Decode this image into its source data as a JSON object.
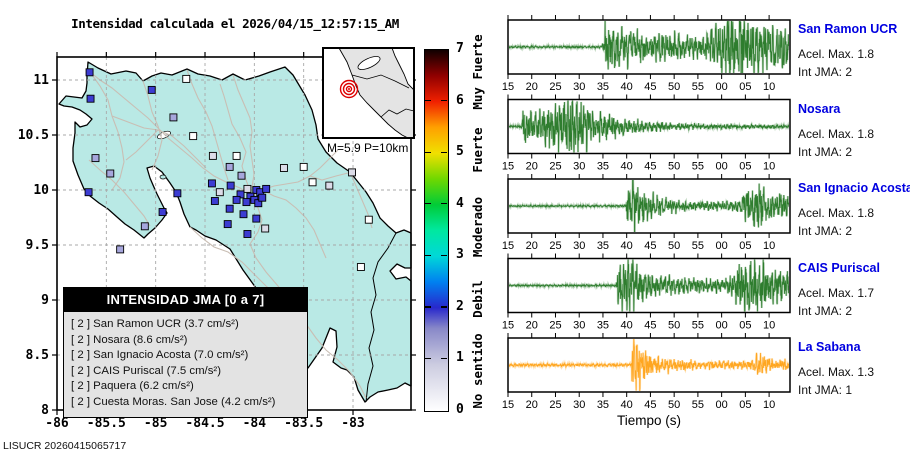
{
  "chart_data": {
    "type": "composite",
    "map": {
      "type": "map-scatter",
      "title": "Intensidad calculada el 2026/04/15_12:57:15_AM",
      "lon_range": [
        -86,
        -82.41
      ],
      "lat_range": [
        8,
        11.21
      ],
      "x_tick_values": [
        -86,
        -85.5,
        -85,
        -84.5,
        -84,
        -83.5,
        -83
      ],
      "x_tick_labels": [
        "-86",
        "-85.5",
        "-85",
        "-84.5",
        "-84",
        "-83.5",
        "-83"
      ],
      "y_tick_values": [
        8,
        8.5,
        9,
        9.5,
        10,
        10.5,
        11
      ],
      "y_tick_labels": [
        "8",
        "8.5",
        "9",
        "9.5",
        "10",
        "10.5",
        "11"
      ],
      "inset": {
        "label": "M=5.9 P=10km",
        "magnitude": 5.9,
        "depth_km": 10
      },
      "legend": {
        "title": "INTENSIDAD JMA [0 a 7]",
        "items": [
          "[ 2 ]  San Ramon UCR (3.7 cm/s²)",
          "[ 2 ]  Nosara (8.6 cm/s²)",
          "[ 2 ]  San Ignacio Acosta (7.0 cm/s²)",
          "[ 2 ]  CAIS Puriscal (7.5 cm/s²)",
          "[ 2 ]  Paquera (6.2 cm/s²)",
          "[ 2 ]  Cuesta Moras. San Jose (4.2 cm/s²)"
        ]
      },
      "stations": [
        {
          "lon": -85.67,
          "lat": 11.07,
          "int": 2
        },
        {
          "lon": -85.04,
          "lat": 10.91,
          "int": 2
        },
        {
          "lon": -85.66,
          "lat": 10.83,
          "int": 2
        },
        {
          "lon": -84.69,
          "lat": 11.01,
          "int": 0
        },
        {
          "lon": -84.82,
          "lat": 10.66,
          "int": 1
        },
        {
          "lon": -84.62,
          "lat": 10.49,
          "int": 0
        },
        {
          "lon": -85.61,
          "lat": 10.29,
          "int": 1
        },
        {
          "lon": -85.46,
          "lat": 10.15,
          "int": 1
        },
        {
          "lon": -85.68,
          "lat": 9.98,
          "int": 2
        },
        {
          "lon": -84.93,
          "lat": 9.8,
          "int": 2
        },
        {
          "lon": -85.11,
          "lat": 9.67,
          "int": 1
        },
        {
          "lon": -85.36,
          "lat": 9.46,
          "int": 1
        },
        {
          "lon": -84.42,
          "lat": 10.31,
          "int": 0.5
        },
        {
          "lon": -84.18,
          "lat": 10.31,
          "int": 0
        },
        {
          "lon": -84.25,
          "lat": 10.21,
          "int": 1
        },
        {
          "lon": -83.7,
          "lat": 10.2,
          "int": 0.5
        },
        {
          "lon": -83.5,
          "lat": 10.21,
          "int": 0
        },
        {
          "lon": -84.13,
          "lat": 10.13,
          "int": 1
        },
        {
          "lon": -84.35,
          "lat": 9.98,
          "int": 0.5
        },
        {
          "lon": -84.43,
          "lat": 10.06,
          "int": 2
        },
        {
          "lon": -84.24,
          "lat": 10.04,
          "int": 2
        },
        {
          "lon": -84.07,
          "lat": 10.01,
          "int": 0.5
        },
        {
          "lon": -83.98,
          "lat": 10.0,
          "int": 2
        },
        {
          "lon": -83.94,
          "lat": 9.98,
          "int": 2
        },
        {
          "lon": -83.88,
          "lat": 10.01,
          "int": 2
        },
        {
          "lon": -84.78,
          "lat": 9.97,
          "int": 2
        },
        {
          "lon": -84.4,
          "lat": 9.9,
          "int": 2
        },
        {
          "lon": -84.25,
          "lat": 9.83,
          "int": 2
        },
        {
          "lon": -84.11,
          "lat": 9.78,
          "int": 2
        },
        {
          "lon": -83.98,
          "lat": 9.74,
          "int": 2
        },
        {
          "lon": -83.89,
          "lat": 9.65,
          "int": 0.5
        },
        {
          "lon": -84.04,
          "lat": 9.94,
          "int": 2
        },
        {
          "lon": -84.0,
          "lat": 9.91,
          "int": 2
        },
        {
          "lon": -83.96,
          "lat": 9.88,
          "int": 2
        },
        {
          "lon": -83.92,
          "lat": 9.93,
          "int": 2
        },
        {
          "lon": -84.08,
          "lat": 9.89,
          "int": 2
        },
        {
          "lon": -84.14,
          "lat": 9.96,
          "int": 2
        },
        {
          "lon": -84.18,
          "lat": 9.91,
          "int": 2
        },
        {
          "lon": -84.27,
          "lat": 9.69,
          "int": 2
        },
        {
          "lon": -84.07,
          "lat": 9.6,
          "int": 2
        },
        {
          "lon": -83.41,
          "lat": 10.07,
          "int": 0
        },
        {
          "lon": -83.24,
          "lat": 10.04,
          "int": 0.5
        },
        {
          "lon": -83.01,
          "lat": 10.16,
          "int": 0.5
        },
        {
          "lon": -82.84,
          "lat": 9.73,
          "int": 0
        },
        {
          "lon": -83.59,
          "lat": 8.96,
          "int": 0.5
        },
        {
          "lon": -82.92,
          "lat": 9.3,
          "int": 0
        }
      ],
      "marker_colors": {
        "2": "#3c3cd2",
        "1": "#a6a6dc",
        "0.5": "#dcdce8",
        "0": "#ffffff"
      },
      "land_color": "#b9e9e5"
    },
    "colorbar": {
      "tick_values": [
        0,
        1,
        2,
        3,
        4,
        5,
        6,
        7
      ],
      "tick_labels": [
        "0",
        "1",
        "2",
        "3",
        "4",
        "5",
        "6",
        "7"
      ],
      "category_labels": [
        {
          "text": "No sentido",
          "at": 0.75
        },
        {
          "text": "Debil",
          "at": 2.15
        },
        {
          "text": "Moderado",
          "at": 3.55
        },
        {
          "text": "Fuerte",
          "at": 5.05
        },
        {
          "text": "Muy Fuerte",
          "at": 6.55
        }
      ],
      "stops": [
        [
          0,
          "#ffffff"
        ],
        [
          0.9,
          "#cccce0"
        ],
        [
          1.6,
          "#8888c8"
        ],
        [
          2,
          "#2828cc"
        ],
        [
          2.5,
          "#0080f0"
        ],
        [
          3,
          "#00d8d8"
        ],
        [
          3.5,
          "#00e8a0"
        ],
        [
          4,
          "#00cc38"
        ],
        [
          4.5,
          "#70d800"
        ],
        [
          5,
          "#f0e000"
        ],
        [
          5.5,
          "#ffa000"
        ],
        [
          6,
          "#f02000"
        ],
        [
          6.5,
          "#900000"
        ],
        [
          7,
          "#100000"
        ]
      ]
    },
    "waveforms": {
      "type": "line",
      "xlabel": "Tiempo (s)",
      "t_range": [
        15,
        74.4
      ],
      "x_tick_values": [
        15,
        20,
        25,
        30,
        35,
        40,
        45,
        50,
        55,
        60,
        65,
        70
      ],
      "x_tick_labels": [
        "15",
        "20",
        "25",
        "30",
        "35",
        "40",
        "45",
        "50",
        "55",
        "00",
        "05",
        "10"
      ],
      "stations": [
        {
          "name": "San Ramon UCR",
          "acel_label": "Acel. Max. 1.8",
          "int_label": "Int JMA: 2",
          "acel_max": 1.8,
          "int_jma": 2,
          "color": "#2e7d2e",
          "envelope": [
            [
              15,
              0.03
            ],
            [
              34.7,
              0.03
            ],
            [
              35.2,
              0.55
            ],
            [
              37.5,
              0.75
            ],
            [
              39,
              0.5
            ],
            [
              43,
              0.42
            ],
            [
              48,
              0.38
            ],
            [
              53,
              0.33
            ],
            [
              56.5,
              0.3
            ],
            [
              58,
              0.55
            ],
            [
              60,
              0.8
            ],
            [
              61.5,
              1.0
            ],
            [
              63,
              0.85
            ],
            [
              64.5,
              0.95
            ],
            [
              66,
              0.75
            ],
            [
              68,
              0.8
            ],
            [
              70,
              0.65
            ],
            [
              72,
              0.7
            ],
            [
              74.4,
              0.6
            ]
          ]
        },
        {
          "name": "Nosara",
          "acel_label": "Acel. Max. 1.8",
          "int_label": "Int JMA: 2",
          "acel_max": 1.8,
          "int_jma": 2,
          "color": "#2e7d2e",
          "envelope": [
            [
              15,
              0.03
            ],
            [
              17.8,
              0.04
            ],
            [
              18.2,
              0.5
            ],
            [
              19,
              0.55
            ],
            [
              21,
              0.35
            ],
            [
              23,
              0.45
            ],
            [
              25,
              0.7
            ],
            [
              27,
              0.8
            ],
            [
              28.5,
              1.0
            ],
            [
              30,
              0.75
            ],
            [
              31.5,
              0.6
            ],
            [
              33,
              0.45
            ],
            [
              35,
              0.4
            ],
            [
              37,
              0.3
            ],
            [
              40,
              0.22
            ],
            [
              44,
              0.15
            ],
            [
              48,
              0.12
            ],
            [
              54,
              0.09
            ],
            [
              60,
              0.07
            ],
            [
              66,
              0.06
            ],
            [
              74.4,
              0.05
            ]
          ]
        },
        {
          "name": "San Ignacio Acosta",
          "acel_label": "Acel. Max. 1.8",
          "int_label": "Int JMA: 2",
          "acel_max": 1.8,
          "int_jma": 2,
          "color": "#2e7d2e",
          "envelope": [
            [
              15,
              0.025
            ],
            [
              39.8,
              0.03
            ],
            [
              40.3,
              0.9
            ],
            [
              41,
              1.0
            ],
            [
              42.5,
              0.6
            ],
            [
              44,
              0.4
            ],
            [
              46,
              0.3
            ],
            [
              48,
              0.22
            ],
            [
              52,
              0.16
            ],
            [
              56,
              0.14
            ],
            [
              60,
              0.13
            ],
            [
              63,
              0.15
            ],
            [
              64.5,
              0.35
            ],
            [
              66,
              0.6
            ],
            [
              67,
              0.75
            ],
            [
              68.5,
              0.6
            ],
            [
              70,
              0.45
            ],
            [
              72,
              0.35
            ],
            [
              74.4,
              0.3
            ]
          ]
        },
        {
          "name": "CAIS Puriscal",
          "acel_label": "Acel. Max. 1.7",
          "int_label": "Int JMA: 2",
          "acel_max": 1.7,
          "int_jma": 2,
          "color": "#2e7d2e",
          "envelope": [
            [
              15,
              0.025
            ],
            [
              37.7,
              0.03
            ],
            [
              38.2,
              0.6
            ],
            [
              39.5,
              0.85
            ],
            [
              41,
              0.75
            ],
            [
              42.5,
              0.5
            ],
            [
              44,
              0.4
            ],
            [
              46,
              0.3
            ],
            [
              49,
              0.25
            ],
            [
              53,
              0.22
            ],
            [
              57,
              0.2
            ],
            [
              60,
              0.2
            ],
            [
              62,
              0.3
            ],
            [
              63.5,
              0.6
            ],
            [
              65,
              0.8
            ],
            [
              66.5,
              0.9
            ],
            [
              68,
              0.7
            ],
            [
              70,
              0.55
            ],
            [
              72,
              0.5
            ],
            [
              74.4,
              0.45
            ]
          ]
        },
        {
          "name": "La Sabana",
          "acel_label": "Acel. Max. 1.3",
          "int_label": "Int JMA: 1",
          "acel_max": 1.3,
          "int_jma": 1,
          "color": "#ffa620",
          "envelope": [
            [
              15,
              0.04
            ],
            [
              40.8,
              0.05
            ],
            [
              41.3,
              0.8
            ],
            [
              42,
              1.0
            ],
            [
              43,
              0.55
            ],
            [
              44.5,
              0.35
            ],
            [
              46,
              0.28
            ],
            [
              48,
              0.2
            ],
            [
              52,
              0.15
            ],
            [
              56,
              0.13
            ],
            [
              60,
              0.12
            ],
            [
              63,
              0.11
            ],
            [
              66,
              0.12
            ],
            [
              67.5,
              0.3
            ],
            [
              69,
              0.25
            ],
            [
              71,
              0.18
            ],
            [
              74.4,
              0.15
            ]
          ]
        }
      ]
    }
  },
  "footer": "LISUCR 20260415065717"
}
